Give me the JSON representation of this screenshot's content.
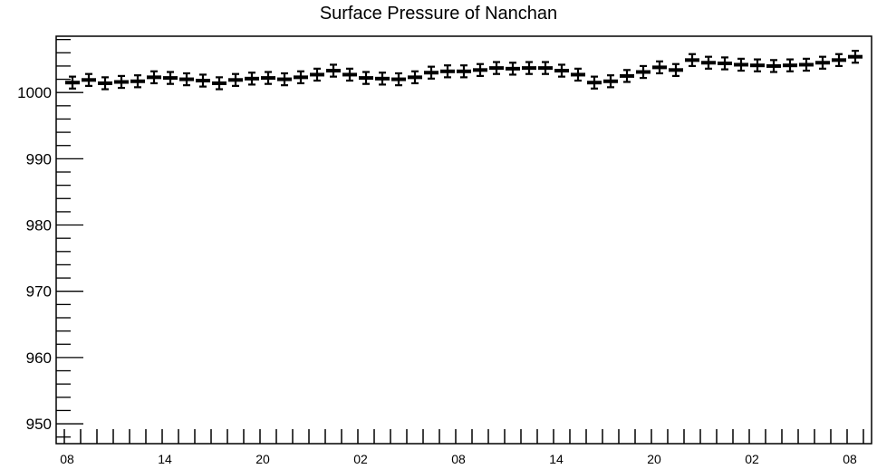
{
  "chart_data": {
    "type": "scatter",
    "title": "Surface Pressure of Nanchan",
    "xlabel": "",
    "ylabel": "",
    "ylim": [
      947,
      1008.5
    ],
    "y_ticks": [
      950,
      960,
      970,
      980,
      990,
      1000
    ],
    "x_tick_labels": [
      "08",
      "14",
      "20",
      "02",
      "08",
      "14",
      "20",
      "02",
      "08"
    ],
    "grid": false,
    "error_bar": 0.9,
    "series": [
      {
        "values": [
          1001.5,
          1001.9,
          1001.4,
          1001.6,
          1001.7,
          1002.3,
          1002.2,
          1002.0,
          1001.8,
          1001.4,
          1001.9,
          1002.1,
          1002.2,
          1002.0,
          1002.3,
          1002.7,
          1003.3,
          1002.7,
          1002.2,
          1002.1,
          1002.0,
          1002.3,
          1003.0,
          1003.2,
          1003.2,
          1003.4,
          1003.7,
          1003.6,
          1003.7,
          1003.7,
          1003.3,
          1002.7,
          1001.5,
          1001.7,
          1002.5,
          1003.1,
          1003.8,
          1003.4,
          1004.9,
          1004.5,
          1004.4,
          1004.2,
          1004.1,
          1004.0,
          1004.1,
          1004.2,
          1004.5,
          1004.9,
          1005.4
        ]
      }
    ]
  }
}
